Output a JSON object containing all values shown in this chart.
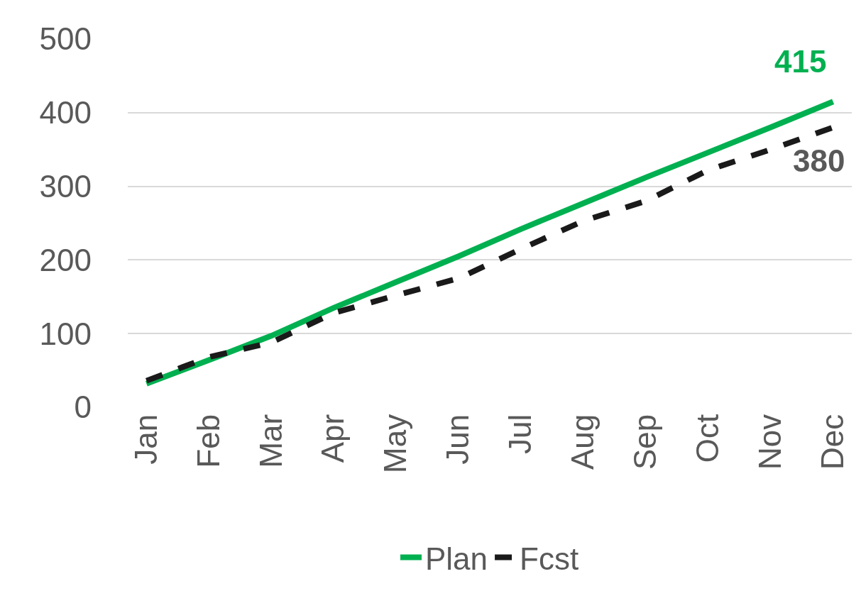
{
  "chart_data": {
    "type": "line",
    "categories": [
      "Jan",
      "Feb",
      "Mar",
      "Apr",
      "May",
      "Jun",
      "Jul",
      "Aug",
      "Sep",
      "Oct",
      "Nov",
      "Dec"
    ],
    "series": [
      {
        "name": "Plan",
        "color": "#00b050",
        "line_style": "solid",
        "values": [
          32,
          64,
          97,
          135,
          170,
          205,
          242,
          277,
          312,
          346,
          380,
          415
        ]
      },
      {
        "name": "Fcst",
        "color": "#1a1a1a",
        "line_style": "dashed",
        "values": [
          36,
          68,
          88,
          128,
          152,
          175,
          215,
          253,
          280,
          322,
          350,
          380
        ]
      }
    ],
    "annotations": [
      {
        "text": "415",
        "x": "Dec",
        "y": 415
      },
      {
        "text": "380",
        "x": "Dec",
        "y": 380
      }
    ],
    "ylim": [
      0,
      500
    ],
    "yticks": [
      0,
      100,
      200,
      300,
      400,
      500
    ],
    "grid": "y",
    "legend": "bottom",
    "marker": "none"
  }
}
